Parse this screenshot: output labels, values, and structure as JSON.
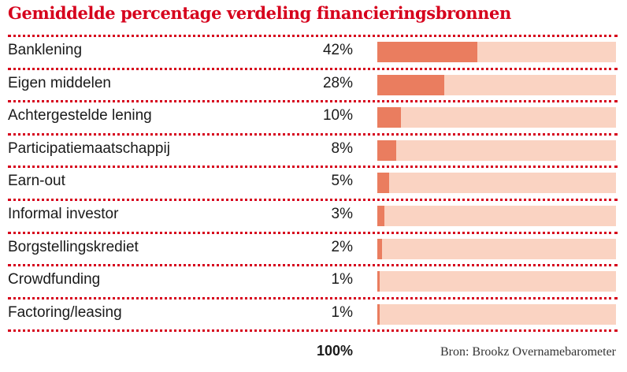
{
  "title": "Gemiddelde percentage verdeling financieringsbronnen",
  "total_label": "100%",
  "source": "Bron: Brookz Overnamebarometer",
  "colors": {
    "accent": "#d6001c",
    "bar_fill": "#ea7d5f",
    "bar_track": "#fad3c2"
  },
  "chart_data": {
    "type": "bar",
    "orientation": "horizontal",
    "title": "Gemiddelde percentage verdeling financieringsbronnen",
    "categories": [
      "Banklening",
      "Eigen middelen",
      "Achtergestelde lening",
      "Participatiemaatschappij",
      "Earn-out",
      "Informal investor",
      "Borgstellingskrediet",
      "Crowdfunding",
      "Factoring/leasing"
    ],
    "values": [
      42,
      28,
      10,
      8,
      5,
      3,
      2,
      1,
      1
    ],
    "value_labels": [
      "42%",
      "28%",
      "10%",
      "8%",
      "5%",
      "3%",
      "2%",
      "1%",
      "1%"
    ],
    "xlim": [
      0,
      100
    ],
    "unit": "%"
  }
}
